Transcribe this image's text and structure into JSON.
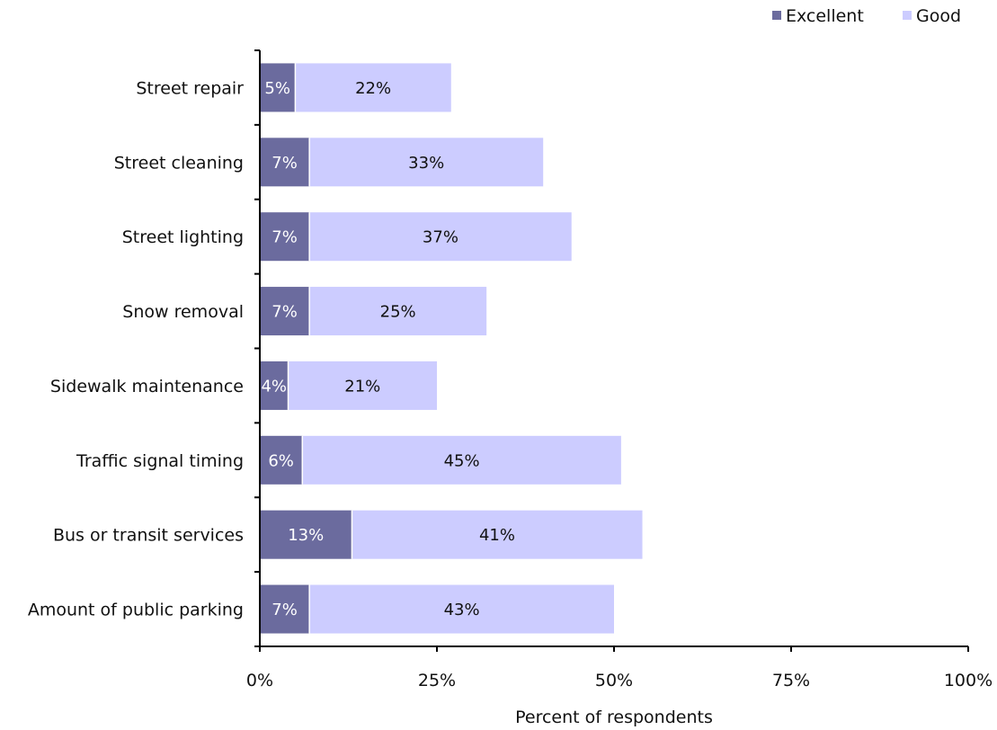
{
  "chart_data": {
    "type": "bar",
    "orientation": "horizontal",
    "stacked": true,
    "title": "",
    "xlabel": "Percent of respondents",
    "ylabel": "",
    "xlim": [
      0,
      100
    ],
    "x_ticks": [
      "0%",
      "25%",
      "50%",
      "75%",
      "100%"
    ],
    "x_tick_values": [
      0,
      25,
      50,
      75,
      100
    ],
    "grid": false,
    "legend_position": "top-right",
    "categories": [
      "Street repair",
      "Street cleaning",
      "Street lighting",
      "Snow removal",
      "Sidewalk maintenance",
      "Traffic signal timing",
      "Bus or transit services",
      "Amount of public parking"
    ],
    "series": [
      {
        "name": "Excellent",
        "color": "#6b6b9e",
        "label_color": "#ffffff",
        "values": [
          5,
          7,
          7,
          7,
          4,
          6,
          13,
          7
        ],
        "labels": [
          "5%",
          "7%",
          "7%",
          "7%",
          "4%",
          "6%",
          "13%",
          "7%"
        ]
      },
      {
        "name": "Good",
        "color": "#ccccff",
        "label_color": "#111111",
        "values": [
          22,
          33,
          37,
          25,
          21,
          45,
          41,
          43
        ],
        "labels": [
          "22%",
          "33%",
          "37%",
          "25%",
          "21%",
          "45%",
          "41%",
          "43%"
        ]
      }
    ]
  }
}
